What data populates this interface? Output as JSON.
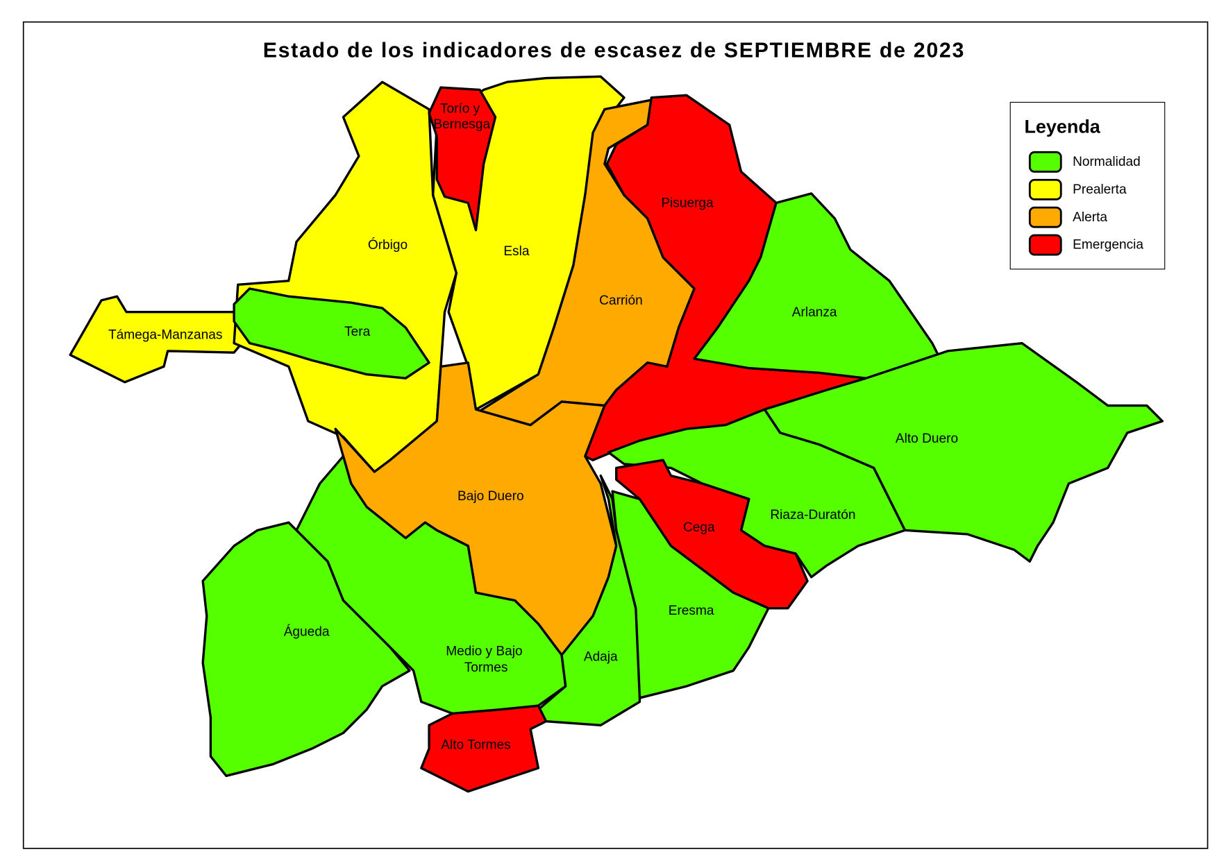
{
  "title": "Estado de los indicadores de escasez de SEPTIEMBRE de 2023",
  "legend": {
    "title": "Leyenda",
    "items": [
      {
        "name": "Normalidad",
        "color": "#55ff00"
      },
      {
        "name": "Prealerta",
        "color": "#ffff00"
      },
      {
        "name": "Alerta",
        "color": "#ffaa00"
      },
      {
        "name": "Emergencia",
        "color": "#ff0000"
      }
    ]
  },
  "regions": [
    {
      "lines": [
        "Támega-Manzanas"
      ],
      "status": "Prealerta"
    },
    {
      "lines": [
        "Órbigo"
      ],
      "status": "Prealerta"
    },
    {
      "lines": [
        "Esla"
      ],
      "status": "Prealerta"
    },
    {
      "lines": [
        "Torío y",
        "Bernesga"
      ],
      "status": "Emergencia"
    },
    {
      "lines": [
        "Tera"
      ],
      "status": "Normalidad"
    },
    {
      "lines": [
        "Carrión"
      ],
      "status": "Alerta"
    },
    {
      "lines": [
        "Pisuerga"
      ],
      "status": "Emergencia"
    },
    {
      "lines": [
        "Arlanza"
      ],
      "status": "Normalidad"
    },
    {
      "lines": [
        "Alto Duero"
      ],
      "status": "Normalidad"
    },
    {
      "lines": [
        "Riaza-Duratón"
      ],
      "status": "Normalidad"
    },
    {
      "lines": [
        "Cega"
      ],
      "status": "Emergencia"
    },
    {
      "lines": [
        "Bajo Duero"
      ],
      "status": "Alerta"
    },
    {
      "lines": [
        "Medio y Bajo",
        "Tormes"
      ],
      "status": "Normalidad"
    },
    {
      "lines": [
        "Águeda"
      ],
      "status": "Normalidad"
    },
    {
      "lines": [
        "Adaja"
      ],
      "status": "Normalidad"
    },
    {
      "lines": [
        "Eresma"
      ],
      "status": "Normalidad"
    },
    {
      "lines": [
        "Alto Tormes"
      ],
      "status": "Emergencia"
    }
  ]
}
